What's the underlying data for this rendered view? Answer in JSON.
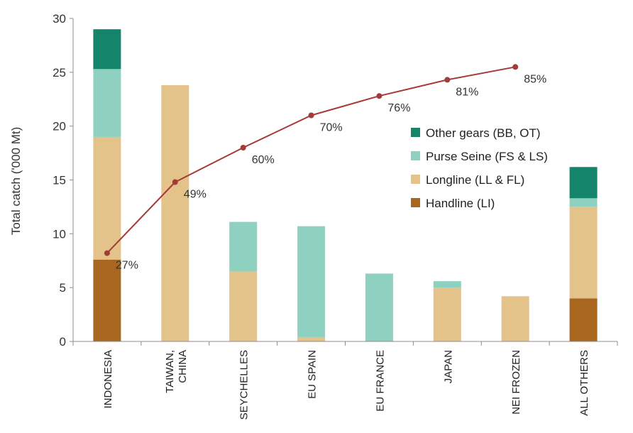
{
  "chart_data": {
    "type": "bar",
    "stacked": true,
    "title": "",
    "xlabel": "",
    "ylabel": "Total catch ('000 Mt)",
    "ylim": [
      0,
      30
    ],
    "yticks": [
      0,
      5,
      10,
      15,
      20,
      25,
      30
    ],
    "grid": false,
    "legend_position": "right-middle",
    "categories": [
      "INDONESIA",
      "TAIWAN,\nCHINA",
      "SEYCHELLES",
      "EU SPAIN",
      "EU FRANCE",
      "JAPAN",
      "NEI FROZEN",
      "ALL OTHERS"
    ],
    "series": [
      {
        "name": "Handline (LI)",
        "color": "#a9661f",
        "values": [
          7.6,
          0,
          0,
          0,
          0,
          0,
          0,
          4.0
        ]
      },
      {
        "name": "Longline (LL & FL)",
        "color": "#e3c38a",
        "values": [
          11.4,
          23.8,
          6.5,
          0.4,
          0,
          5.0,
          4.2,
          8.5
        ]
      },
      {
        "name": "Purse Seine (FS & LS)",
        "color": "#8fd1c1",
        "values": [
          6.3,
          0,
          4.6,
          10.3,
          6.3,
          0.6,
          0,
          0.8
        ]
      },
      {
        "name": "Other gears (BB, OT)",
        "color": "#14846a",
        "values": [
          3.7,
          0,
          0,
          0,
          0,
          0,
          0,
          2.9
        ]
      }
    ],
    "cumulative_line": {
      "color": "#a63a3a",
      "values": [
        8.2,
        14.8,
        18.0,
        21.0,
        22.8,
        24.3,
        25.5
      ],
      "labels": [
        "27%",
        "49%",
        "60%",
        "70%",
        "76%",
        "81%",
        "85%"
      ]
    },
    "legend_order": [
      "Other gears (BB, OT)",
      "Purse Seine (FS & LS)",
      "Longline (LL & FL)",
      "Handline (LI)"
    ]
  }
}
